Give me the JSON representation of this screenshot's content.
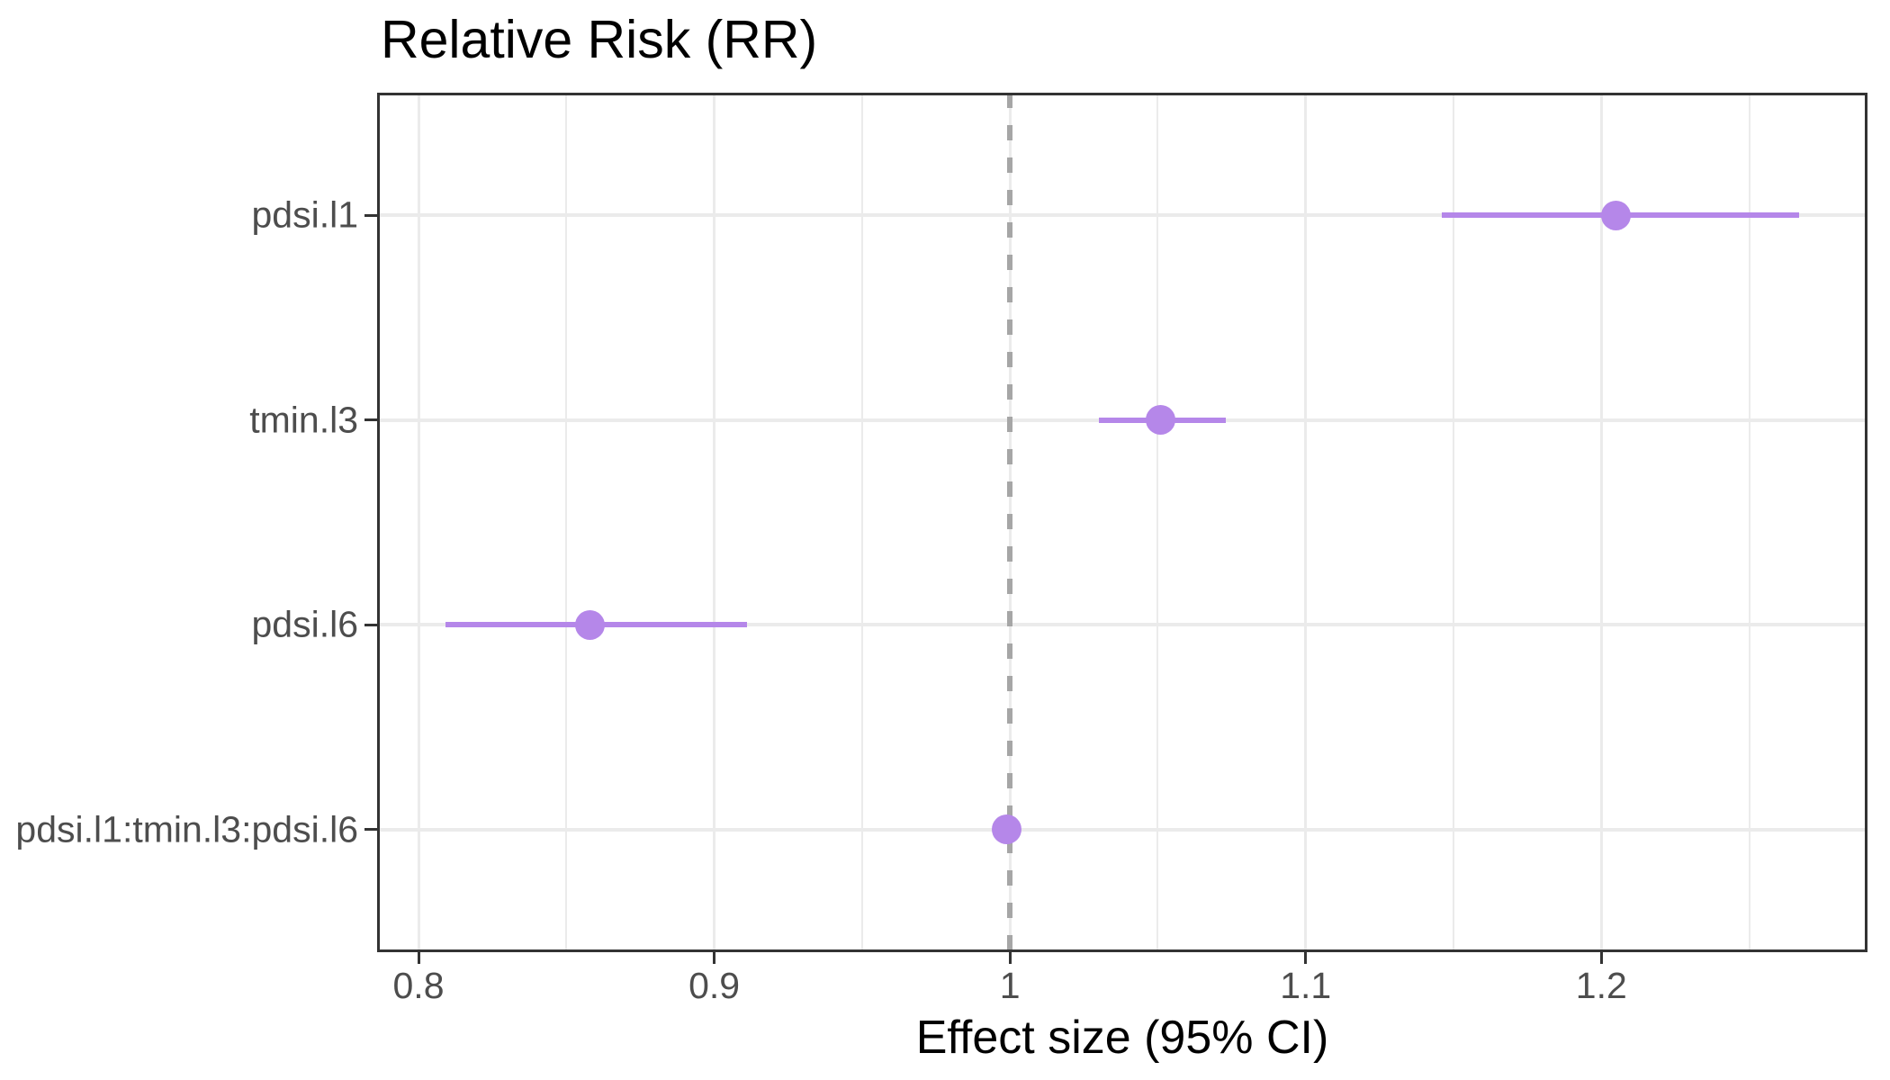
{
  "chart_data": {
    "type": "scatter",
    "variant": "forest-plot-horizontal-ci",
    "title": "Relative Risk (RR)",
    "xlabel": "Effect size (95% CI)",
    "ylabel": "",
    "legend_position": "none",
    "grid": true,
    "xlim": [
      0.786,
      1.29
    ],
    "x_ticks": [
      {
        "value": 0.8,
        "label": "0.8"
      },
      {
        "value": 0.9,
        "label": "0.9"
      },
      {
        "value": 1.0,
        "label": "1"
      },
      {
        "value": 1.1,
        "label": "1.1"
      },
      {
        "value": 1.2,
        "label": "1.2"
      }
    ],
    "x_minor_gridlines": [
      0.85,
      0.95,
      1.05,
      1.15,
      1.25
    ],
    "reference_line_x": 1.0,
    "rows": [
      {
        "label": "pdsi.l1",
        "estimate": 1.205,
        "ci_low": 1.146,
        "ci_high": 1.267
      },
      {
        "label": "tmin.l3",
        "estimate": 1.051,
        "ci_low": 1.03,
        "ci_high": 1.073
      },
      {
        "label": "pdsi.l6",
        "estimate": 0.858,
        "ci_low": 0.809,
        "ci_high": 0.911
      },
      {
        "label": "pdsi.l1:tmin.l3:pdsi.l6",
        "estimate": 0.999,
        "ci_low": 0.996,
        "ci_high": 1.002
      }
    ],
    "colors": {
      "point": "#b587e9",
      "ci_line": "#b587e9",
      "reference_line": "#a6a6a6",
      "gridline": "#ebebeb",
      "panel_border": "#333333",
      "axis_text": "#4d4d4d",
      "title_text": "#000000",
      "background": "#ffffff"
    }
  }
}
